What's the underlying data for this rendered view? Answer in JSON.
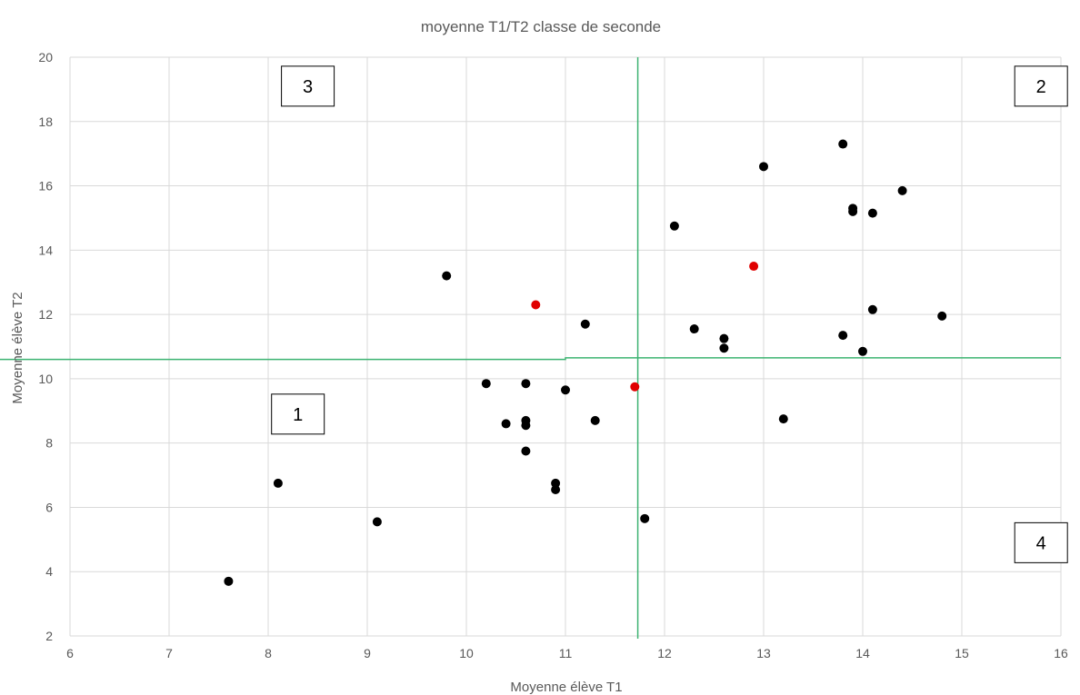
{
  "chart_data": {
    "type": "scatter",
    "title": "moyenne T1/T2 classe de seconde",
    "xlabel": "Moyenne élève T1",
    "ylabel": "Moyenne élève T2",
    "xlim": [
      6,
      16
    ],
    "ylim": [
      2,
      20
    ],
    "x_ticks": [
      6,
      7,
      8,
      9,
      10,
      11,
      12,
      13,
      14,
      15,
      16
    ],
    "y_ticks": [
      2,
      4,
      6,
      8,
      10,
      12,
      14,
      16,
      18,
      20
    ],
    "grid": true,
    "series": [
      {
        "color": "#000000",
        "points": [
          {
            "x": 7.6,
            "y": 3.7
          },
          {
            "x": 8.1,
            "y": 6.75
          },
          {
            "x": 9.1,
            "y": 5.55
          },
          {
            "x": 9.8,
            "y": 13.2
          },
          {
            "x": 10.2,
            "y": 9.85
          },
          {
            "x": 10.4,
            "y": 8.6
          },
          {
            "x": 10.6,
            "y": 9.85
          },
          {
            "x": 10.6,
            "y": 8.7
          },
          {
            "x": 10.6,
            "y": 8.55
          },
          {
            "x": 10.6,
            "y": 7.75
          },
          {
            "x": 10.9,
            "y": 6.75
          },
          {
            "x": 10.9,
            "y": 6.55
          },
          {
            "x": 11.0,
            "y": 9.65
          },
          {
            "x": 11.2,
            "y": 11.7
          },
          {
            "x": 11.3,
            "y": 8.7
          },
          {
            "x": 11.8,
            "y": 5.65
          },
          {
            "x": 12.1,
            "y": 14.75
          },
          {
            "x": 12.3,
            "y": 11.55
          },
          {
            "x": 12.6,
            "y": 11.25
          },
          {
            "x": 12.6,
            "y": 10.95
          },
          {
            "x": 13.0,
            "y": 16.6
          },
          {
            "x": 13.2,
            "y": 8.75
          },
          {
            "x": 13.8,
            "y": 17.3
          },
          {
            "x": 13.8,
            "y": 11.35
          },
          {
            "x": 13.9,
            "y": 15.3
          },
          {
            "x": 13.9,
            "y": 15.2
          },
          {
            "x": 14.0,
            "y": 10.85
          },
          {
            "x": 14.1,
            "y": 15.15
          },
          {
            "x": 14.1,
            "y": 12.15
          },
          {
            "x": 14.4,
            "y": 15.85
          },
          {
            "x": 14.8,
            "y": 11.95
          }
        ]
      },
      {
        "color": "#e00000",
        "points": [
          {
            "x": 10.7,
            "y": 12.3
          },
          {
            "x": 11.7,
            "y": 9.75
          },
          {
            "x": 12.9,
            "y": 13.5
          }
        ]
      }
    ],
    "reference_lines": {
      "color": "#3cb371",
      "vertical_x": 11.73,
      "horizontal_y_left": 10.6,
      "horizontal_y_right": 10.65,
      "horizontal_step_x": 11.0
    },
    "quadrant_labels": [
      {
        "text": "1",
        "x": 8.3,
        "y": 8.9
      },
      {
        "text": "2",
        "x": 15.8,
        "y": 19.1
      },
      {
        "text": "3",
        "x": 8.4,
        "y": 19.1
      },
      {
        "text": "4",
        "x": 15.8,
        "y": 4.9
      }
    ]
  }
}
